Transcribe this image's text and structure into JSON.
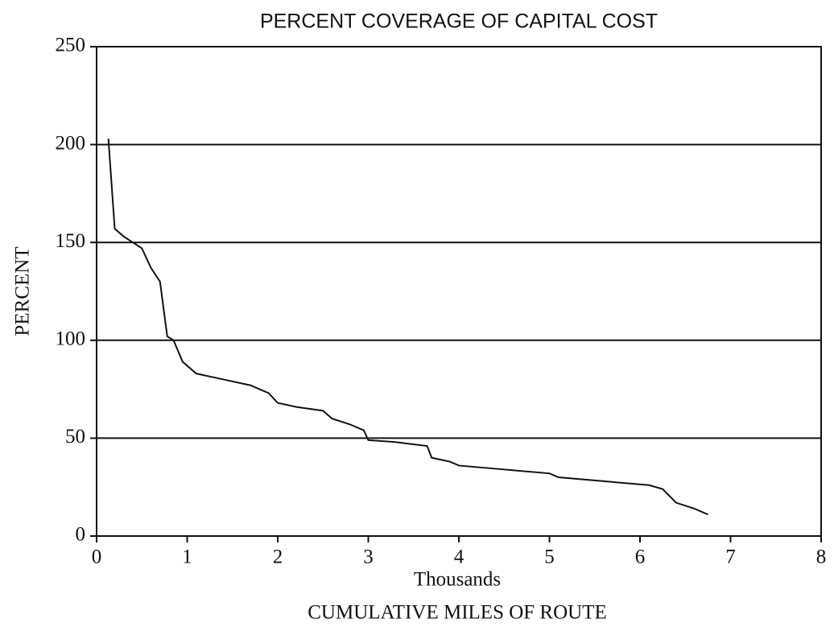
{
  "chart_data": {
    "type": "line",
    "title": "PERCENT COVERAGE OF CAPITAL COST",
    "x_label": "Thousands",
    "x_title": "CUMULATIVE MILES OF ROUTE",
    "y_label": "PERCENT",
    "x": [
      0.13,
      0.2,
      0.3,
      0.4,
      0.5,
      0.6,
      0.7,
      0.78,
      0.85,
      0.95,
      1.1,
      1.4,
      1.7,
      1.9,
      2.0,
      2.2,
      2.5,
      2.6,
      2.8,
      2.95,
      3.0,
      3.3,
      3.65,
      3.7,
      3.9,
      4.0,
      4.5,
      5.0,
      5.1,
      5.6,
      6.1,
      6.25,
      6.4,
      6.6,
      6.75
    ],
    "series": [
      {
        "name": "Percent",
        "color": "#111111",
        "values": [
          203,
          157,
          153,
          150,
          147,
          137,
          130,
          102,
          100,
          89,
          83,
          80,
          77,
          73,
          68,
          66,
          64,
          60,
          57,
          54,
          49,
          48,
          46,
          40,
          38,
          36,
          34,
          32,
          30,
          28,
          26,
          24,
          17,
          14,
          11
        ]
      }
    ],
    "xlim": [
      0,
      8
    ],
    "xticks": [
      0,
      1,
      2,
      3,
      4,
      5,
      6,
      7,
      8
    ],
    "ylim": [
      0,
      250
    ],
    "yticks": [
      0,
      50,
      100,
      150,
      200,
      250
    ],
    "grid": true
  }
}
